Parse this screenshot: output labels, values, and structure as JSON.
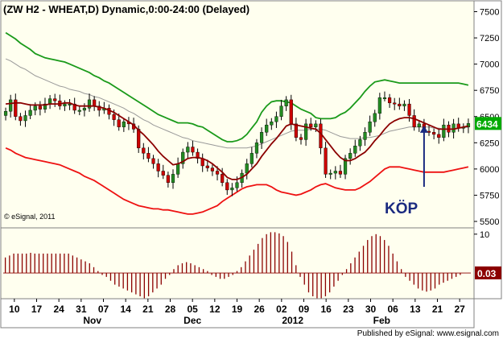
{
  "header": {
    "title": "(ZW H2 - WHEAT,D) Dynamic,0:00-24:00 (Delayed)"
  },
  "colors": {
    "background": "#ffffef",
    "frame": "#808080",
    "bull_candle": "#228b22",
    "bear_candle": "#cc0000",
    "upper_band": "#1a9a1a",
    "middle_band": "#999999",
    "lower_band": "#ee1111",
    "moving_average": "#8b0000",
    "histogram": "#8b0000",
    "price_marker": "#00aa00",
    "annotation": "#1a2a80"
  },
  "footer": {
    "copyright": "© eSignal, 2011",
    "publisher": "Published by eSignal: www.esignal.com"
  },
  "annotation": {
    "text": "KÖP"
  },
  "chart_data": [
    {
      "type": "candlestick",
      "title": "(ZW H2 - WHEAT,D) Dynamic,0:00-24:00 (Delayed)",
      "ylim": [
        5500,
        7550
      ],
      "y_ticks": [
        7500,
        7250,
        7000,
        6750,
        6500,
        6250,
        6000,
        5750,
        5500
      ],
      "y_tick_labels": [
        "7500",
        "7250",
        "7000",
        "6750",
        "6500",
        "6250",
        "6000",
        "5750",
        "5500"
      ],
      "last_price_label": "6434",
      "last_price": 6434,
      "x_tick_labels": [
        "10",
        "17",
        "24",
        "31",
        "07",
        "14",
        "21",
        "28",
        "05",
        "12",
        "19",
        "26",
        "02",
        "09",
        "16",
        "23",
        "30",
        "06",
        "13",
        "21",
        "27"
      ],
      "month_labels": [
        {
          "label": "Nov",
          "at_tick": 3.5
        },
        {
          "label": "Dec",
          "at_tick": 8
        },
        {
          "label": "2012",
          "at_tick": 12.5
        },
        {
          "label": "Feb",
          "at_tick": 16.5
        }
      ],
      "closes": [
        6550,
        6660,
        6500,
        6460,
        6510,
        6560,
        6600,
        6570,
        6620,
        6670,
        6650,
        6600,
        6620,
        6620,
        6560,
        6560,
        6580,
        6660,
        6600,
        6560,
        6580,
        6520,
        6470,
        6400,
        6450,
        6430,
        6380,
        6200,
        6150,
        6100,
        6050,
        5980,
        5940,
        5870,
        5950,
        6050,
        6160,
        6210,
        6160,
        6100,
        6030,
        6010,
        5980,
        5950,
        5870,
        5800,
        5820,
        5870,
        5960,
        6050,
        6150,
        6250,
        6350,
        6420,
        6450,
        6500,
        6600,
        6660,
        6430,
        6300,
        6280,
        6430,
        6400,
        6430,
        6200,
        5950,
        5960,
        5980,
        5950,
        6100,
        6150,
        6220,
        6280,
        6350,
        6450,
        6530,
        6680,
        6680,
        6630,
        6620,
        6600,
        6620,
        6510,
        6400,
        6430,
        6360,
        6350,
        6330,
        6300,
        6420,
        6350,
        6430,
        6390,
        6400,
        6434
      ],
      "upper_band": [
        7300,
        7270,
        7240,
        7200,
        7170,
        7140,
        7100,
        7080,
        7060,
        7050,
        7040,
        7030,
        7020,
        7000,
        6980,
        6960,
        6940,
        6920,
        6890,
        6870,
        6840,
        6820,
        6790,
        6760,
        6730,
        6700,
        6670,
        6640,
        6610,
        6580,
        6550,
        6520,
        6500,
        6480,
        6460,
        6440,
        6440,
        6440,
        6430,
        6410,
        6400,
        6370,
        6340,
        6310,
        6280,
        6260,
        6260,
        6270,
        6290,
        6330,
        6390,
        6450,
        6540,
        6600,
        6640,
        6650,
        6650,
        6640,
        6630,
        6600,
        6570,
        6550,
        6530,
        6490,
        6480,
        6480,
        6480,
        6490,
        6520,
        6540,
        6580,
        6630,
        6680,
        6740,
        6790,
        6830,
        6840,
        6850,
        6840,
        6830,
        6820,
        6820,
        6820,
        6820,
        6820,
        6820,
        6820,
        6820,
        6820,
        6820,
        6820,
        6820,
        6820,
        6810,
        6800
      ],
      "middle_band": [
        7050,
        7030,
        7000,
        6970,
        6950,
        6920,
        6890,
        6870,
        6850,
        6830,
        6810,
        6790,
        6780,
        6760,
        6750,
        6740,
        6720,
        6710,
        6690,
        6680,
        6660,
        6640,
        6620,
        6600,
        6580,
        6550,
        6530,
        6500,
        6470,
        6450,
        6420,
        6400,
        6380,
        6360,
        6340,
        6320,
        6300,
        6290,
        6270,
        6260,
        6250,
        6240,
        6230,
        6220,
        6210,
        6200,
        6200,
        6200,
        6200,
        6200,
        6210,
        6220,
        6240,
        6260,
        6280,
        6300,
        6320,
        6340,
        6360,
        6370,
        6370,
        6370,
        6380,
        6380,
        6380,
        6370,
        6350,
        6330,
        6310,
        6300,
        6290,
        6290,
        6290,
        6300,
        6300,
        6310,
        6320,
        6340,
        6360,
        6370,
        6380,
        6390,
        6400,
        6400,
        6400,
        6400,
        6400,
        6390,
        6390,
        6380,
        6380,
        6380,
        6390,
        6390,
        6400
      ],
      "moving_average": [
        6620,
        6625,
        6630,
        6630,
        6620,
        6610,
        6610,
        6610,
        6610,
        6620,
        6620,
        6620,
        6630,
        6630,
        6610,
        6600,
        6600,
        6600,
        6600,
        6590,
        6580,
        6560,
        6540,
        6510,
        6480,
        6450,
        6420,
        6370,
        6330,
        6280,
        6230,
        6170,
        6120,
        6080,
        6040,
        6050,
        6070,
        6100,
        6110,
        6110,
        6100,
        6080,
        6050,
        6010,
        5970,
        5920,
        5900,
        5900,
        5920,
        5950,
        6000,
        6050,
        6120,
        6180,
        6240,
        6290,
        6350,
        6410,
        6430,
        6420,
        6410,
        6400,
        6390,
        6380,
        6340,
        6280,
        6220,
        6160,
        6110,
        6080,
        6080,
        6100,
        6130,
        6160,
        6210,
        6270,
        6320,
        6380,
        6430,
        6460,
        6480,
        6490,
        6490,
        6480,
        6460,
        6440,
        6420,
        6400,
        6380,
        6380,
        6380,
        6380,
        6390,
        6400,
        6410
      ],
      "lower_band": [
        6200,
        6180,
        6150,
        6130,
        6110,
        6100,
        6090,
        6080,
        6070,
        6060,
        6050,
        6040,
        6020,
        6000,
        5980,
        5960,
        5930,
        5910,
        5890,
        5860,
        5830,
        5800,
        5770,
        5740,
        5710,
        5690,
        5670,
        5650,
        5640,
        5630,
        5620,
        5620,
        5610,
        5610,
        5600,
        5590,
        5580,
        5570,
        5570,
        5580,
        5590,
        5610,
        5630,
        5650,
        5690,
        5720,
        5750,
        5780,
        5810,
        5830,
        5840,
        5850,
        5850,
        5850,
        5830,
        5800,
        5780,
        5770,
        5760,
        5750,
        5760,
        5780,
        5800,
        5830,
        5850,
        5860,
        5840,
        5820,
        5810,
        5800,
        5800,
        5800,
        5820,
        5850,
        5880,
        5920,
        5960,
        6000,
        6020,
        6020,
        6020,
        6010,
        6000,
        5990,
        5980,
        5970,
        5970,
        5970,
        5970,
        5970,
        5980,
        5990,
        6000,
        6010,
        6020
      ]
    },
    {
      "type": "bar",
      "ylim": [
        -6,
        11
      ],
      "y_ticks": [
        10
      ],
      "y_tick_labels": [
        "10"
      ],
      "last_value_label": "0.03",
      "last_value": 0.03,
      "values": [
        4,
        4.5,
        5,
        5,
        5,
        5,
        5.2,
        5,
        5,
        5,
        5,
        5,
        5,
        5,
        5,
        5,
        4.5,
        4,
        3.5,
        3,
        2.5,
        1.5,
        0.5,
        -0.5,
        -1,
        -2,
        -3,
        -3.5,
        -4,
        -4.5,
        -5,
        -5.5,
        -6,
        -6.5,
        -6,
        -5,
        -4,
        -3,
        -1.5,
        -0.5,
        1,
        2,
        2.5,
        2.8,
        2.5,
        2,
        1.5,
        1,
        0.5,
        -0.5,
        -1,
        -1.5,
        -1.5,
        -1,
        -0.5,
        0.5,
        1.5,
        3,
        4.5,
        6,
        7.5,
        9,
        10,
        10.5,
        10.5,
        10.2,
        9.5,
        8,
        5.5,
        2,
        -1,
        -3,
        -5,
        -6,
        -6.5,
        -6.5,
        -6,
        -5,
        -3.5,
        -2,
        -0.5,
        1,
        2.5,
        4,
        5.5,
        7,
        8.5,
        9.5,
        10,
        9.5,
        8.5,
        7,
        5,
        3,
        1,
        -1,
        -2,
        -3,
        -4,
        -4.5,
        -4.8,
        -4.5,
        -4,
        -3,
        -2.5,
        -2,
        -1.5,
        -1,
        -0.5,
        0,
        0.03
      ]
    }
  ]
}
